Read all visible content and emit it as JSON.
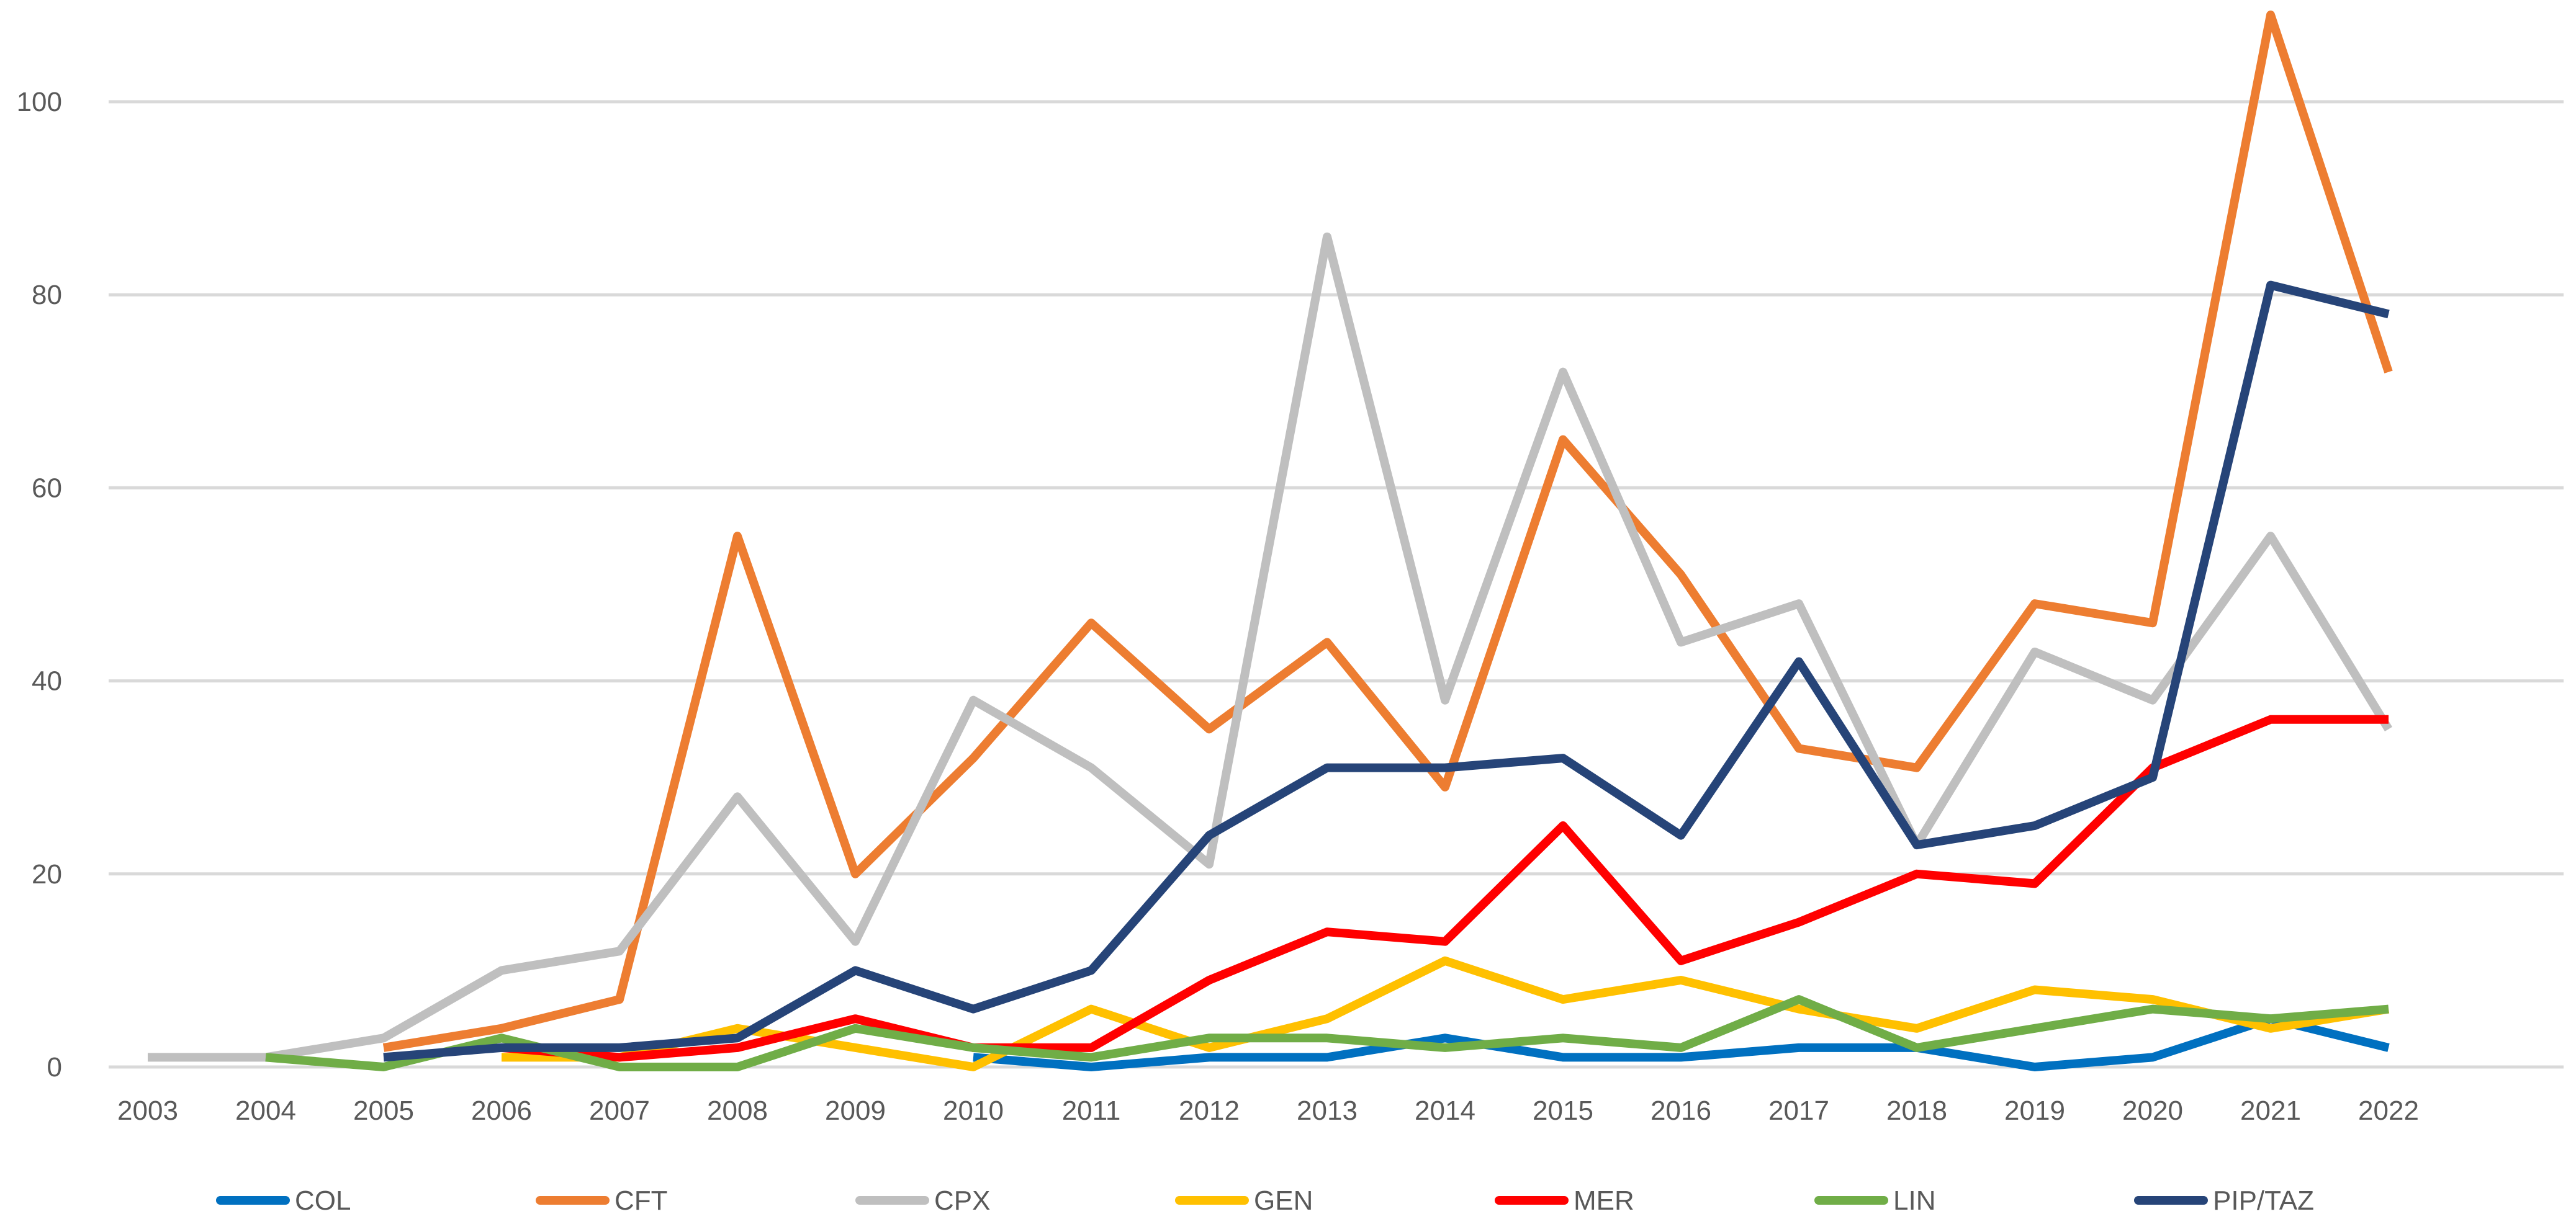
{
  "chart_data": {
    "type": "line",
    "title": "",
    "xlabel": "",
    "ylabel": "",
    "categories": [
      "2003",
      "2004",
      "2005",
      "2006",
      "2007",
      "2008",
      "2009",
      "2010",
      "2011",
      "2012",
      "2013",
      "2014",
      "2015",
      "2016",
      "2017",
      "2018",
      "2019",
      "2020",
      "2021",
      "2022"
    ],
    "ylim": [
      0,
      110
    ],
    "yticks": [
      0,
      20,
      40,
      60,
      80,
      100
    ],
    "grid": true,
    "legend_position": "bottom",
    "series": [
      {
        "name": "COL",
        "color": "#0070c0",
        "values": [
          null,
          null,
          null,
          null,
          null,
          null,
          null,
          1,
          0,
          1,
          1,
          3,
          1,
          1,
          2,
          2,
          0,
          1,
          5,
          2
        ]
      },
      {
        "name": "CFT",
        "color": "#ed7d31",
        "values": [
          null,
          null,
          2,
          4,
          7,
          55,
          20,
          32,
          46,
          35,
          44,
          29,
          65,
          51,
          33,
          31,
          48,
          46,
          109,
          72
        ]
      },
      {
        "name": "CPX",
        "color": "#bfbfbf",
        "values": [
          1,
          1,
          3,
          10,
          12,
          28,
          13,
          38,
          31,
          21,
          86,
          38,
          72,
          44,
          48,
          23,
          43,
          38,
          55,
          35
        ]
      },
      {
        "name": "GEN",
        "color": "#ffc000",
        "values": [
          null,
          null,
          null,
          1,
          1,
          4,
          2,
          0,
          6,
          2,
          5,
          11,
          7,
          9,
          6,
          4,
          8,
          7,
          4,
          6
        ]
      },
      {
        "name": "MER",
        "color": "#ff0000",
        "values": [
          null,
          null,
          null,
          2,
          1,
          2,
          5,
          2,
          2,
          9,
          14,
          13,
          25,
          11,
          15,
          20,
          19,
          31,
          36,
          36
        ]
      },
      {
        "name": "LIN",
        "color": "#70ad47",
        "values": [
          null,
          1,
          0,
          3,
          0,
          0,
          4,
          2,
          1,
          3,
          3,
          2,
          3,
          2,
          7,
          2,
          4,
          6,
          5,
          6
        ]
      },
      {
        "name": "PIP/TAZ",
        "color": "#264478",
        "values": [
          null,
          null,
          1,
          2,
          2,
          3,
          10,
          6,
          10,
          24,
          31,
          31,
          32,
          24,
          42,
          23,
          25,
          30,
          81,
          78
        ]
      }
    ]
  }
}
